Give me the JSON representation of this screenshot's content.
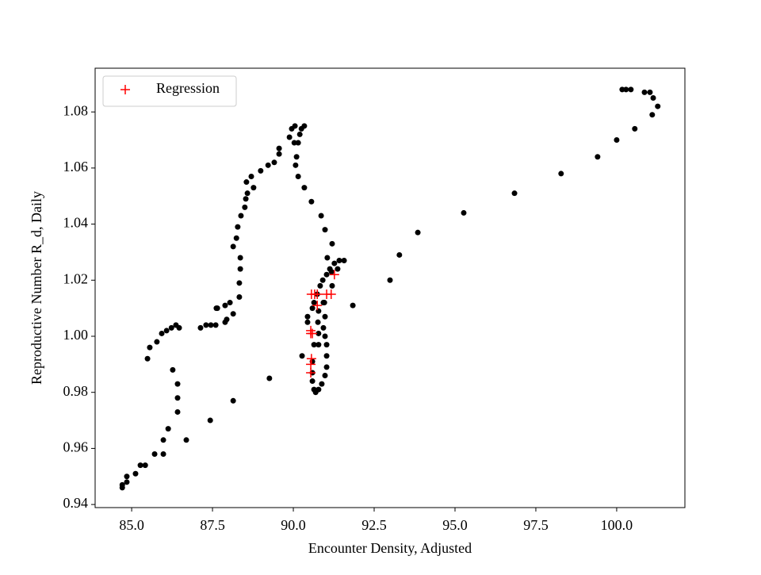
{
  "chart_data": {
    "type": "scatter",
    "xlabel": "Encounter Density, Adjusted",
    "ylabel": "Reproductive Number R_d, Daily",
    "xlim": [
      83.87,
      102.11
    ],
    "ylim": [
      0.9389,
      1.0956
    ],
    "xticks": [
      {
        "value": 85,
        "label": "85.0"
      },
      {
        "value": 87.5,
        "label": "87.5"
      },
      {
        "value": 90,
        "label": "90.0"
      },
      {
        "value": 92.5,
        "label": "92.5"
      },
      {
        "value": 95,
        "label": "95.0"
      },
      {
        "value": 97.5,
        "label": "97.5"
      },
      {
        "value": 100,
        "label": "100.0"
      }
    ],
    "yticks": [
      {
        "value": 0.94,
        "label": "0.94"
      },
      {
        "value": 0.96,
        "label": "0.96"
      },
      {
        "value": 0.98,
        "label": "0.98"
      },
      {
        "value": 1.0,
        "label": "1.00"
      },
      {
        "value": 1.02,
        "label": "1.02"
      },
      {
        "value": 1.04,
        "label": "1.04"
      },
      {
        "value": 1.06,
        "label": "1.06"
      },
      {
        "value": 1.08,
        "label": "1.08"
      }
    ],
    "legend": "upper left",
    "series": [
      {
        "color": "#000000",
        "marker": "dot",
        "x": [
          84.71,
          84.71,
          84.85,
          84.85,
          85.12,
          85.27,
          85.42,
          85.71,
          85.98,
          85.98,
          86.13,
          86.42,
          86.42,
          86.42,
          86.27,
          86.69,
          87.43,
          88.14,
          89.26,
          90.27,
          85.49,
          85.56,
          85.78,
          85.93,
          86.08,
          86.23,
          86.37,
          86.47,
          87.13,
          87.3,
          87.45,
          87.6,
          87.89,
          87.94,
          88.14,
          87.62,
          87.65,
          87.89,
          88.04,
          88.33,
          88.33,
          88.36,
          88.36,
          88.14,
          88.24,
          88.28,
          88.38,
          88.5,
          88.53,
          88.58,
          88.55,
          88.7,
          88.77,
          88.99,
          89.22,
          89.41,
          89.56,
          89.56,
          89.88,
          89.95,
          90.05,
          90.03,
          90.15,
          90.2,
          90.25,
          90.34,
          90.1,
          90.07,
          90.15,
          90.34,
          90.56,
          90.86,
          90.98,
          91.2,
          91.05,
          91.18,
          91.2,
          90.96,
          90.78,
          90.76,
          90.78,
          90.78,
          90.64,
          90.44,
          90.44,
          90.59,
          90.64,
          90.74,
          90.83,
          90.91,
          91.03,
          91.13,
          91.27,
          91.42,
          91.57,
          91.37,
          90.59,
          90.59,
          90.59,
          90.64,
          90.69,
          90.78,
          90.88,
          90.98,
          91.03,
          91.03,
          91.03,
          90.98,
          90.93,
          90.98,
          90.93,
          91.84,
          92.99,
          93.28,
          93.85,
          95.27,
          96.84,
          98.28,
          99.41,
          100.0,
          100.56,
          101.1,
          101.27,
          101.13,
          101.03,
          100.86,
          100.44,
          100.29,
          100.17
        ],
        "values": [
          0.946,
          0.947,
          0.948,
          0.95,
          0.951,
          0.954,
          0.954,
          0.958,
          0.958,
          0.963,
          0.967,
          0.973,
          0.978,
          0.983,
          0.988,
          0.963,
          0.97,
          0.977,
          0.985,
          0.993,
          0.992,
          0.996,
          0.998,
          1.001,
          1.002,
          1.003,
          1.004,
          1.003,
          1.003,
          1.004,
          1.004,
          1.004,
          1.005,
          1.006,
          1.008,
          1.01,
          1.01,
          1.011,
          1.012,
          1.014,
          1.019,
          1.024,
          1.028,
          1.032,
          1.035,
          1.039,
          1.043,
          1.046,
          1.049,
          1.051,
          1.055,
          1.057,
          1.053,
          1.059,
          1.061,
          1.062,
          1.065,
          1.067,
          1.071,
          1.074,
          1.075,
          1.069,
          1.069,
          1.072,
          1.074,
          1.075,
          1.064,
          1.061,
          1.057,
          1.053,
          1.048,
          1.043,
          1.038,
          1.033,
          1.028,
          1.023,
          1.018,
          1.012,
          1.009,
          1.005,
          1.001,
          0.997,
          0.997,
          1.007,
          1.005,
          1.01,
          1.012,
          1.015,
          1.018,
          1.02,
          1.022,
          1.024,
          1.026,
          1.027,
          1.027,
          1.024,
          0.991,
          0.987,
          0.984,
          0.981,
          0.98,
          0.981,
          0.983,
          0.986,
          0.989,
          0.993,
          0.997,
          1.0,
          1.003,
          1.007,
          1.012,
          1.011,
          1.02,
          1.029,
          1.037,
          1.044,
          1.051,
          1.058,
          1.064,
          1.07,
          1.074,
          1.079,
          1.082,
          1.085,
          1.087,
          1.087,
          1.088,
          1.088,
          1.088
        ]
      },
      {
        "name": "Regression",
        "color": "#ff0000",
        "marker": "plus",
        "x": [
          90.56,
          90.66,
          90.74,
          91.03,
          91.17,
          91.27,
          90.74,
          90.54,
          90.54,
          90.59,
          90.54,
          90.54,
          90.56
        ],
        "values": [
          1.015,
          1.015,
          1.015,
          1.015,
          1.015,
          1.022,
          1.011,
          1.002,
          1.001,
          1.001,
          0.99,
          0.987,
          0.992
        ]
      }
    ]
  }
}
